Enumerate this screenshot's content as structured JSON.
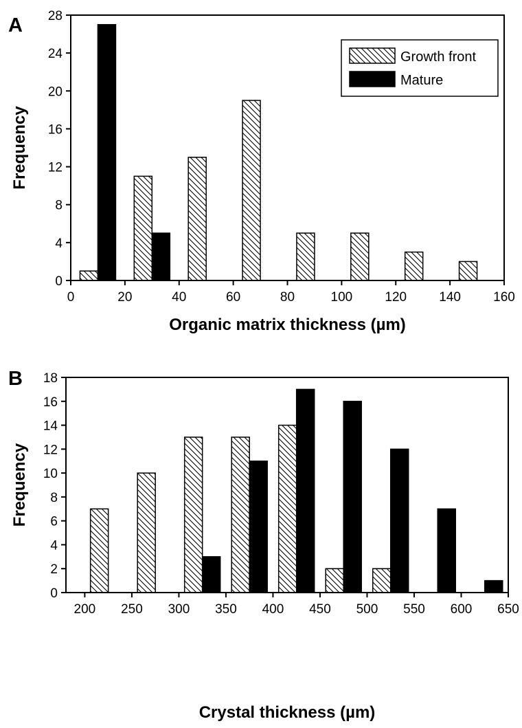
{
  "chart_data": [
    {
      "panel": "A",
      "type": "bar",
      "title": "",
      "xlabel": "Organic matrix thickness (µm)",
      "ylabel": "Frequency",
      "xlim": [
        0,
        160
      ],
      "ylim": [
        0,
        28
      ],
      "xticks": [
        0,
        20,
        40,
        60,
        80,
        100,
        120,
        140,
        160
      ],
      "yticks": [
        0,
        4,
        8,
        12,
        16,
        20,
        24,
        28
      ],
      "grid": false,
      "legend_position": "top-right",
      "categories": [
        10,
        30,
        50,
        70,
        90,
        110,
        130,
        150
      ],
      "series": [
        {
          "name": "Growth front",
          "pattern": "hatch",
          "values": [
            1,
            11,
            13,
            19,
            5,
            5,
            3,
            2
          ]
        },
        {
          "name": "Mature",
          "pattern": "solid",
          "color": "#000000",
          "values": [
            27,
            5,
            0,
            0,
            0,
            0,
            0,
            0
          ]
        }
      ]
    },
    {
      "panel": "B",
      "type": "bar",
      "title": "",
      "xlabel": "Crystal thickness (µm)",
      "ylabel": "Frequency",
      "xlim": [
        180,
        650
      ],
      "ylim": [
        0,
        18
      ],
      "xticks": [
        200,
        250,
        300,
        350,
        400,
        450,
        500,
        550,
        600,
        650
      ],
      "yticks": [
        0,
        2,
        4,
        6,
        8,
        10,
        12,
        14,
        16,
        18
      ],
      "grid": false,
      "categories": [
        225,
        275,
        325,
        375,
        425,
        475,
        525,
        575,
        625
      ],
      "series": [
        {
          "name": "Growth front",
          "pattern": "hatch",
          "values": [
            7,
            10,
            13,
            13,
            14,
            2,
            2,
            0,
            0
          ]
        },
        {
          "name": "Mature",
          "pattern": "solid",
          "color": "#000000",
          "values": [
            0,
            0,
            3,
            11,
            17,
            16,
            12,
            7,
            1
          ]
        }
      ]
    }
  ]
}
